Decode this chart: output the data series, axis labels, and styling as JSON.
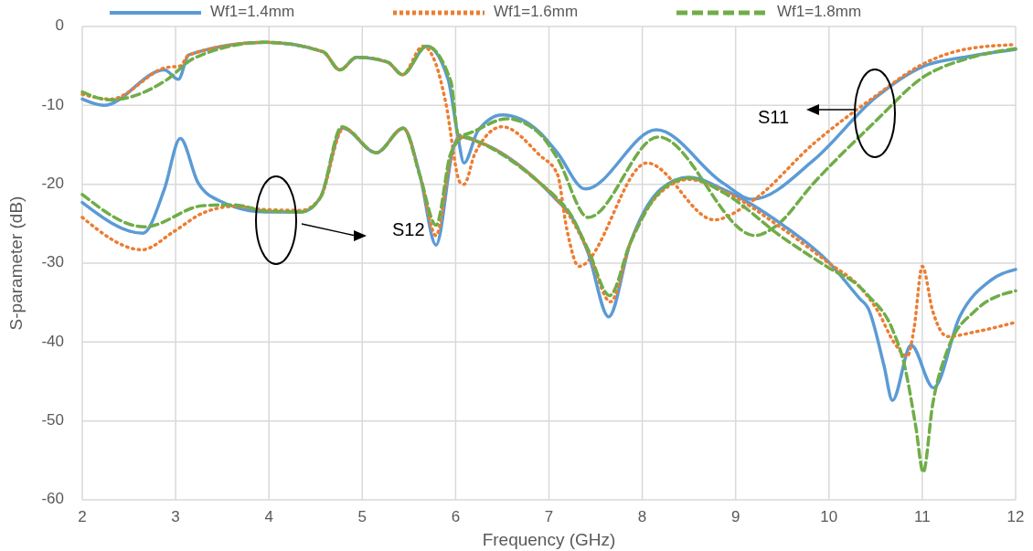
{
  "chart_data": {
    "type": "line",
    "xlabel": "Frequency (GHz)",
    "ylabel": "S-parameter (dB)",
    "xlim": [
      2,
      12
    ],
    "ylim": [
      -60,
      0
    ],
    "xticks": [
      2,
      3,
      4,
      5,
      6,
      7,
      8,
      9,
      10,
      11,
      12
    ],
    "yticks": [
      -60,
      -50,
      -40,
      -30,
      -20,
      -10,
      0
    ],
    "grid": true,
    "legend": "top",
    "marker": "none",
    "annotations": [
      "S11",
      "S12"
    ],
    "series": [
      {
        "name": "Wf1=1.4mm",
        "color": "#5b9bd5",
        "line_style": "solid",
        "x": [
          2,
          2.23,
          2.88,
          3.03,
          3.14,
          3.96,
          4.58,
          4.76,
          4.94,
          5.27,
          5.43,
          5.69,
          5.92,
          6.02,
          6.09,
          6.24,
          6.5,
          6.9,
          7.09,
          7.39,
          8.15,
          8.86,
          9.18,
          9.84,
          10.5,
          11,
          11.5,
          12
        ],
        "values": [
          -9.2,
          -10,
          -5.5,
          -6.7,
          -3.6,
          -2,
          -3.2,
          -5.5,
          -3.9,
          -4.5,
          -6.1,
          -2.5,
          -6.7,
          -13.6,
          -17.3,
          -13.2,
          -11.2,
          -13.4,
          -16,
          -20.6,
          -13.1,
          -19.8,
          -21.9,
          -16.9,
          -9,
          -5.1,
          -3.8,
          -2.9
        ]
      },
      {
        "name": "Wf1=1.6mm",
        "color": "#ed7d31",
        "line_style": "dotted",
        "x": [
          2,
          2.3,
          2.9,
          3.05,
          3.14,
          3.96,
          4.58,
          4.76,
          4.94,
          5.27,
          5.43,
          5.65,
          5.79,
          5.89,
          6.05,
          6.09,
          6.21,
          6.5,
          6.9,
          7.09,
          7.19,
          7.32,
          8.05,
          8.77,
          9.18,
          9.84,
          10.5,
          11,
          11.5,
          12
        ],
        "values": [
          -8.6,
          -9.2,
          -5.2,
          -5,
          -3.6,
          -2,
          -3.2,
          -5.5,
          -3.9,
          -4.5,
          -6.1,
          -2.5,
          -4.8,
          -9.4,
          -19.8,
          -20,
          -16,
          -12.7,
          -16.3,
          -18.7,
          -25.6,
          -30.4,
          -17.3,
          -24.5,
          -22.1,
          -14.8,
          -8.8,
          -4.8,
          -2.8,
          -2.3
        ]
      },
      {
        "name": "Wf1=1.8mm",
        "color": "#70ad47",
        "line_style": "dashed",
        "x": [
          2,
          2.3,
          2.9,
          3.2,
          3.96,
          4.58,
          4.76,
          4.94,
          5.27,
          5.43,
          5.69,
          5.95,
          6.03,
          6.55,
          6.9,
          7.09,
          7.42,
          8.17,
          9.21,
          9.42,
          9.84,
          10.5,
          11,
          11.5,
          12
        ],
        "values": [
          -8.3,
          -9.3,
          -6.8,
          -4,
          -2,
          -3.2,
          -5.5,
          -3.9,
          -4.5,
          -6.1,
          -2.5,
          -7,
          -13.8,
          -11.7,
          -13.6,
          -16.7,
          -24.2,
          -14,
          -26.5,
          -25.4,
          -19.8,
          -12,
          -6.5,
          -4,
          -2.8
        ]
      },
      {
        "color": "#5b9bd5",
        "line_style": "solid",
        "x": [
          2,
          2.65,
          2.88,
          3.05,
          3.24,
          3.47,
          3.96,
          4.35,
          4.55,
          4.79,
          5.15,
          5.44,
          5.62,
          5.79,
          5.98,
          6.04,
          6.24,
          6.9,
          7.09,
          7.22,
          7.42,
          7.64,
          7.87,
          8.2,
          8.5,
          8.86,
          9.51,
          10,
          10.33,
          10.42,
          10.59,
          10.68,
          10.88,
          11.12,
          11.4,
          11.73,
          12
        ],
        "values": [
          -22.3,
          -26.2,
          -20.6,
          -14.2,
          -19.8,
          -22.1,
          -23.5,
          -23.5,
          -21.7,
          -12.9,
          -16,
          -12.9,
          -19,
          -27.7,
          -15.2,
          -14,
          -14.6,
          -19.8,
          -22.1,
          -23.7,
          -28.7,
          -36.8,
          -27.5,
          -20.6,
          -19.1,
          -20.6,
          -25.2,
          -29.9,
          -34.5,
          -35.7,
          -43,
          -47.4,
          -40.4,
          -45.8,
          -36.8,
          -32.2,
          -30.8
        ]
      },
      {
        "color": "#ed7d31",
        "line_style": "dotted",
        "x": [
          2,
          2.64,
          2.98,
          3.3,
          3.63,
          3.96,
          4.35,
          4.55,
          4.8,
          5.15,
          5.44,
          5.62,
          5.79,
          5.95,
          6.05,
          6.24,
          6.9,
          7.09,
          7.22,
          7.42,
          7.66,
          7.87,
          8.2,
          8.5,
          8.86,
          9.51,
          10,
          10.33,
          10.52,
          10.7,
          10.84,
          10.91,
          11,
          11.11,
          11.27,
          11.57,
          12
        ],
        "values": [
          -24.2,
          -28.3,
          -26,
          -23.6,
          -22.8,
          -23.2,
          -23.3,
          -21.7,
          -12.9,
          -16,
          -12.9,
          -19,
          -26.5,
          -16.5,
          -14,
          -14.6,
          -19.8,
          -22,
          -24,
          -28.5,
          -34.9,
          -27.5,
          -21,
          -19.4,
          -20.8,
          -25.7,
          -30,
          -33,
          -36,
          -40.1,
          -41.8,
          -38.4,
          -30.4,
          -36,
          -39.3,
          -38.7,
          -37.5
        ]
      },
      {
        "color": "#70ad47",
        "line_style": "dashed",
        "x": [
          2,
          2.67,
          3.3,
          3.63,
          3.96,
          4.35,
          4.55,
          4.78,
          5.15,
          5.44,
          5.62,
          5.79,
          5.95,
          6.1,
          6.24,
          6.9,
          7.09,
          7.22,
          7.42,
          7.65,
          7.87,
          8.2,
          8.5,
          8.86,
          9.51,
          10,
          10.33,
          10.42,
          10.68,
          10.81,
          10.93,
          11.01,
          11.11,
          11.27,
          11.57,
          12
        ],
        "values": [
          -21.3,
          -25.4,
          -22.7,
          -22.6,
          -23.4,
          -23.5,
          -21.7,
          -12.7,
          -16,
          -12.9,
          -19,
          -25.2,
          -16,
          -14,
          -14.6,
          -19.8,
          -21.8,
          -23.6,
          -28.3,
          -34.1,
          -27.5,
          -20.8,
          -19.2,
          -21,
          -26.8,
          -30.6,
          -33,
          -34.1,
          -38.4,
          -43,
          -50.7,
          -56.5,
          -48,
          -41,
          -36,
          -33.5
        ]
      }
    ]
  }
}
